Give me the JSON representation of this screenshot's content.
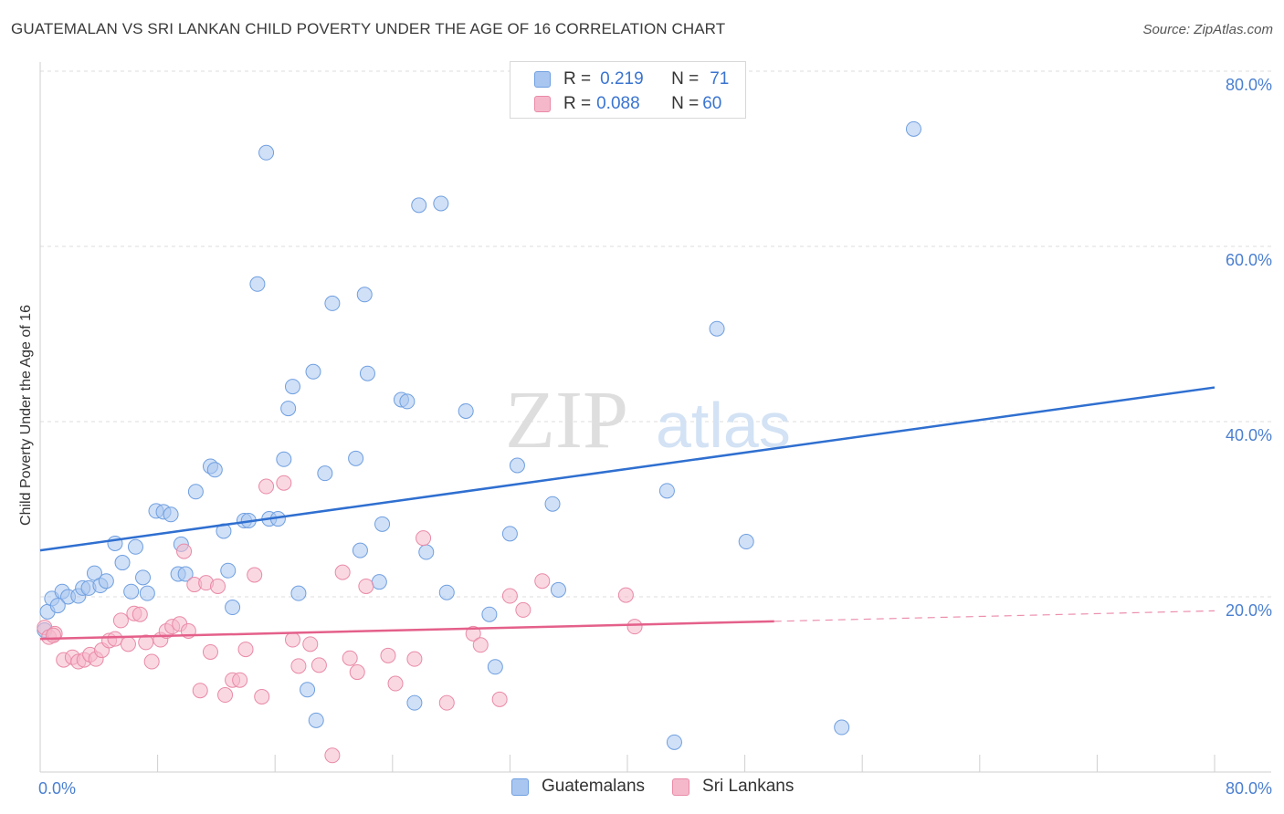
{
  "header": {
    "title": "GUATEMALAN VS SRI LANKAN CHILD POVERTY UNDER THE AGE OF 16 CORRELATION CHART",
    "source": "Source: ZipAtlas.com"
  },
  "watermark": {
    "zip": "ZIP",
    "atlas": "atlas"
  },
  "legend": {
    "r_label": "R =",
    "n_label": "N =",
    "rows": [
      {
        "r": "0.219",
        "n": "71",
        "color": "#a9c6f0"
      },
      {
        "r": "0.088",
        "n": "60",
        "color": "#f5b8cb"
      }
    ]
  },
  "bottom_legend": {
    "items": [
      {
        "label": "Guatemalans",
        "color": "#a9c6f0"
      },
      {
        "label": "Sri Lankans",
        "color": "#f5b8cb"
      }
    ]
  },
  "chart_data": {
    "type": "scatter",
    "title": "GUATEMALAN VS SRI LANKAN CHILD POVERTY UNDER THE AGE OF 16 CORRELATION CHART",
    "xlabel": "",
    "ylabel": "Child Poverty Under the Age of 16",
    "xlim": [
      0,
      80
    ],
    "ylim": [
      0,
      80
    ],
    "x_tick_labels": [
      "0.0%",
      "80.0%"
    ],
    "y_tick_labels": [
      "20.0%",
      "40.0%",
      "60.0%",
      "80.0%"
    ],
    "y_ticks": [
      20,
      40,
      60,
      80
    ],
    "grid": true,
    "series": [
      {
        "name": "Guatemalans",
        "color": "#a9c6f0",
        "stroke": "#6f9fe0",
        "trend": {
          "x0": 0,
          "y0": 25.3,
          "x1": 80,
          "y1": 43.9,
          "color": "#2f6fd0",
          "dashed_from": null
        },
        "points": [
          [
            0.5,
            18.3
          ],
          [
            0.8,
            19.8
          ],
          [
            1.5,
            20.6
          ],
          [
            1.9,
            20.0
          ],
          [
            2.6,
            20.1
          ],
          [
            2.9,
            21.0
          ],
          [
            3.3,
            21.0
          ],
          [
            3.7,
            22.7
          ],
          [
            4.1,
            21.3
          ],
          [
            4.5,
            21.8
          ],
          [
            5.1,
            26.1
          ],
          [
            5.6,
            23.9
          ],
          [
            6.2,
            20.6
          ],
          [
            6.5,
            25.7
          ],
          [
            7.0,
            22.2
          ],
          [
            7.3,
            20.4
          ],
          [
            7.9,
            29.8
          ],
          [
            8.4,
            29.7
          ],
          [
            8.9,
            29.4
          ],
          [
            9.4,
            22.6
          ],
          [
            9.6,
            26.0
          ],
          [
            9.9,
            22.6
          ],
          [
            10.6,
            32.0
          ],
          [
            11.6,
            34.9
          ],
          [
            11.9,
            34.5
          ],
          [
            12.5,
            27.5
          ],
          [
            12.8,
            23.0
          ],
          [
            13.1,
            18.8
          ],
          [
            13.9,
            28.7
          ],
          [
            14.2,
            28.7
          ],
          [
            14.8,
            55.7
          ],
          [
            15.4,
            70.7
          ],
          [
            15.6,
            28.9
          ],
          [
            16.2,
            28.9
          ],
          [
            16.6,
            35.7
          ],
          [
            16.9,
            41.5
          ],
          [
            17.2,
            44.0
          ],
          [
            17.6,
            20.4
          ],
          [
            18.2,
            9.4
          ],
          [
            18.6,
            45.7
          ],
          [
            18.8,
            5.9
          ],
          [
            19.4,
            34.1
          ],
          [
            19.9,
            53.5
          ],
          [
            21.5,
            35.8
          ],
          [
            21.8,
            25.3
          ],
          [
            22.1,
            54.5
          ],
          [
            22.3,
            45.5
          ],
          [
            23.1,
            21.7
          ],
          [
            23.3,
            28.3
          ],
          [
            24.6,
            42.5
          ],
          [
            25.0,
            42.3
          ],
          [
            25.5,
            7.9
          ],
          [
            25.8,
            64.7
          ],
          [
            26.3,
            25.1
          ],
          [
            27.3,
            64.9
          ],
          [
            27.7,
            20.5
          ],
          [
            29.0,
            41.2
          ],
          [
            30.6,
            18.0
          ],
          [
            31.0,
            12.0
          ],
          [
            32.0,
            27.2
          ],
          [
            32.5,
            35.0
          ],
          [
            34.9,
            30.6
          ],
          [
            35.3,
            20.8
          ],
          [
            42.7,
            32.1
          ],
          [
            43.2,
            3.4
          ],
          [
            46.1,
            50.6
          ],
          [
            48.1,
            26.3
          ],
          [
            54.6,
            5.1
          ],
          [
            59.5,
            73.4
          ],
          [
            0.3,
            16.2
          ],
          [
            1.2,
            19.0
          ]
        ]
      },
      {
        "name": "Sri Lankans",
        "color": "#f5b8cb",
        "stroke": "#e98aa7",
        "trend": {
          "x0": 0,
          "y0": 15.2,
          "x1": 80,
          "y1": 18.4,
          "solid_until": 50,
          "color": "#e4608a"
        },
        "points": [
          [
            0.3,
            16.5
          ],
          [
            0.6,
            15.4
          ],
          [
            1.0,
            15.8
          ],
          [
            1.6,
            12.8
          ],
          [
            2.2,
            13.1
          ],
          [
            2.6,
            12.6
          ],
          [
            3.0,
            12.8
          ],
          [
            3.4,
            13.4
          ],
          [
            3.8,
            12.9
          ],
          [
            4.2,
            13.9
          ],
          [
            4.7,
            15.0
          ],
          [
            5.1,
            15.2
          ],
          [
            5.5,
            17.3
          ],
          [
            6.0,
            14.6
          ],
          [
            6.4,
            18.1
          ],
          [
            6.8,
            18.0
          ],
          [
            7.2,
            14.8
          ],
          [
            7.6,
            12.6
          ],
          [
            8.2,
            15.1
          ],
          [
            8.6,
            16.1
          ],
          [
            9.0,
            16.6
          ],
          [
            9.5,
            16.9
          ],
          [
            9.8,
            25.2
          ],
          [
            10.1,
            16.1
          ],
          [
            10.5,
            21.4
          ],
          [
            10.9,
            9.3
          ],
          [
            11.3,
            21.6
          ],
          [
            11.6,
            13.7
          ],
          [
            12.1,
            21.2
          ],
          [
            12.6,
            8.8
          ],
          [
            13.1,
            10.5
          ],
          [
            13.6,
            10.5
          ],
          [
            14.0,
            14.0
          ],
          [
            14.6,
            22.5
          ],
          [
            15.1,
            8.6
          ],
          [
            15.4,
            32.6
          ],
          [
            16.6,
            33.0
          ],
          [
            17.2,
            15.1
          ],
          [
            17.6,
            12.1
          ],
          [
            18.4,
            14.6
          ],
          [
            19.0,
            12.2
          ],
          [
            19.9,
            1.9
          ],
          [
            20.6,
            22.8
          ],
          [
            21.1,
            13.0
          ],
          [
            21.6,
            11.4
          ],
          [
            22.2,
            21.2
          ],
          [
            23.7,
            13.3
          ],
          [
            24.2,
            10.1
          ],
          [
            25.5,
            12.9
          ],
          [
            26.1,
            26.7
          ],
          [
            27.7,
            7.9
          ],
          [
            29.5,
            15.8
          ],
          [
            30.0,
            14.5
          ],
          [
            31.3,
            8.3
          ],
          [
            32.0,
            20.1
          ],
          [
            32.9,
            18.5
          ],
          [
            34.2,
            21.8
          ],
          [
            39.9,
            20.2
          ],
          [
            40.5,
            16.6
          ],
          [
            0.9,
            15.6
          ]
        ]
      }
    ]
  }
}
